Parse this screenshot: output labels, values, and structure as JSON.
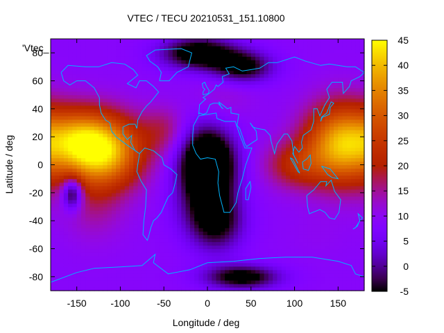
{
  "chart_data": {
    "type": "heatmap",
    "title": "VTEC / TECU 20210531_151.10800",
    "xlabel": "Longitude / deg",
    "ylabel": "Latitude / deg",
    "series_label": "'Vtec_",
    "xlim": [
      -180,
      180
    ],
    "ylim": [
      -90,
      90
    ],
    "x_ticks": [
      -150,
      -100,
      -50,
      0,
      50,
      100,
      150
    ],
    "y_ticks": [
      -80,
      -60,
      -40,
      -20,
      0,
      20,
      40,
      60,
      80
    ],
    "colorbar": {
      "min": -5,
      "max": 45,
      "ticks": [
        -5,
        0,
        5,
        10,
        15,
        20,
        25,
        30,
        35,
        40,
        45
      ]
    },
    "grid": false,
    "blobs": [
      {
        "lon": -120,
        "lat": 10,
        "value": 42,
        "sx": 32,
        "sy": 18
      },
      {
        "lon": -150,
        "lat": 20,
        "value": 22,
        "sx": 25,
        "sy": 15
      },
      {
        "lon": -130,
        "lat": -30,
        "value": 14,
        "sx": 25,
        "sy": 18
      },
      {
        "lon": 155,
        "lat": 15,
        "value": 40,
        "sx": 30,
        "sy": 20
      },
      {
        "lon": 100,
        "lat": 0,
        "value": 20,
        "sx": 25,
        "sy": 12
      },
      {
        "lon": -50,
        "lat": 25,
        "value": 16,
        "sx": 18,
        "sy": 12
      },
      {
        "lon": 125,
        "lat": -50,
        "value": 10,
        "sx": 25,
        "sy": 12
      },
      {
        "lon": -20,
        "lat": -30,
        "value": 6,
        "sx": 20,
        "sy": 15
      },
      {
        "lon": 20,
        "lat": 50,
        "value": 12,
        "sx": 25,
        "sy": 14
      },
      {
        "lon": 0,
        "lat": 0,
        "value": -20,
        "sx": 22,
        "sy": 18
      },
      {
        "lon": 10,
        "lat": -40,
        "value": -7,
        "sx": 22,
        "sy": 15
      },
      {
        "lon": -10,
        "lat": 80,
        "value": -10,
        "sx": 30,
        "sy": 8
      },
      {
        "lon": 40,
        "lat": -80,
        "value": -8,
        "sx": 30,
        "sy": 6
      },
      {
        "lon": -155,
        "lat": -20,
        "value": -10,
        "sx": 8,
        "sy": 8
      },
      {
        "lon": 40,
        "lat": 70,
        "value": -7,
        "sx": 25,
        "sy": 8
      }
    ],
    "background_value": 9,
    "colors": {
      "coast": "#00b4ff",
      "frame": "#000000"
    }
  }
}
